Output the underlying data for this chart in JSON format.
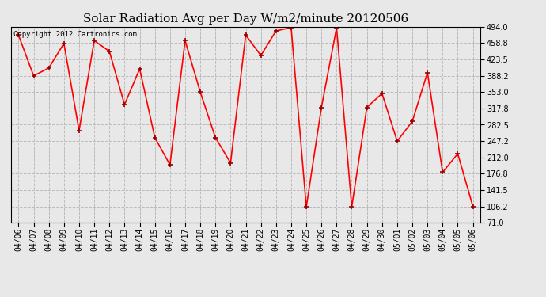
{
  "title": "Solar Radiation Avg per Day W/m2/minute 20120506",
  "copyright_text": "Copyright 2012 Cartronics.com",
  "dates": [
    "04/06",
    "04/07",
    "04/08",
    "04/09",
    "04/10",
    "04/11",
    "04/12",
    "04/13",
    "04/14",
    "04/15",
    "04/16",
    "04/17",
    "04/18",
    "04/19",
    "04/20",
    "04/21",
    "04/22",
    "04/23",
    "04/24",
    "04/25",
    "04/26",
    "04/27",
    "04/28",
    "04/29",
    "04/30",
    "05/01",
    "05/02",
    "05/03",
    "05/04",
    "05/05",
    "05/06"
  ],
  "values": [
    476,
    388,
    405,
    458,
    270,
    464,
    441,
    326,
    403,
    255,
    196,
    464,
    353,
    255,
    200,
    476,
    432,
    485,
    492,
    105,
    320,
    492,
    105,
    320,
    350,
    247,
    290,
    395,
    180,
    220,
    106
  ],
  "ymin": 71.0,
  "ymax": 494.0,
  "yticks": [
    71.0,
    106.2,
    141.5,
    176.8,
    212.0,
    247.2,
    282.5,
    317.8,
    353.0,
    388.2,
    423.5,
    458.8,
    494.0
  ],
  "line_color": "#ff0000",
  "marker_color": "#990000",
  "grid_color": "#bbbbbb",
  "bg_color": "#e8e8e8",
  "title_fontsize": 11,
  "tick_fontsize": 7,
  "copyright_fontsize": 6.5
}
